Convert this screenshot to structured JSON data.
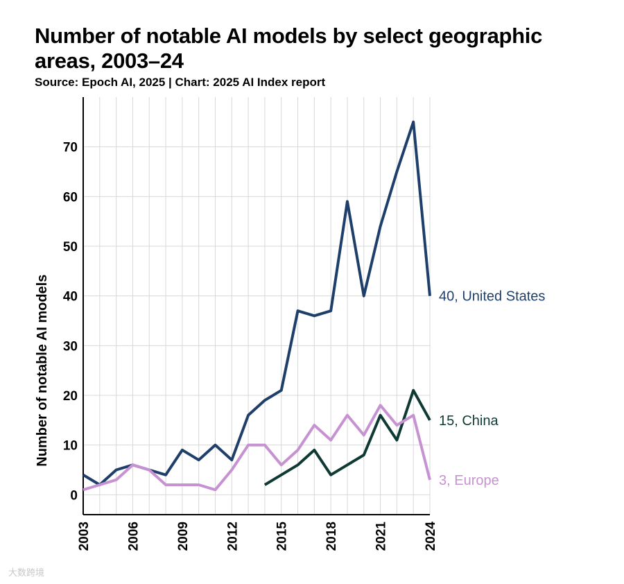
{
  "title": "Number of notable AI models by select geographic areas, 2003–24",
  "subtitle": "Source: Epoch AI, 2025 | Chart: 2025 AI Index report",
  "watermark": "大数跨境",
  "chart_data": {
    "type": "line",
    "title": "Number of notable AI models by select geographic areas, 2003–24",
    "xlabel": "",
    "ylabel": "Number of notable AI models",
    "xlim": [
      2003,
      2024
    ],
    "ylim": [
      -4,
      80
    ],
    "xticks": [
      2003,
      2006,
      2009,
      2012,
      2015,
      2018,
      2021,
      2024
    ],
    "yticks": [
      0,
      10,
      20,
      30,
      40,
      50,
      60,
      70
    ],
    "series": [
      {
        "name": "United States",
        "color": "#1f3f6b",
        "end_label": "40, United States",
        "x": [
          2003,
          2004,
          2005,
          2006,
          2007,
          2008,
          2009,
          2010,
          2011,
          2012,
          2013,
          2014,
          2015,
          2016,
          2017,
          2018,
          2019,
          2020,
          2021,
          2022,
          2023,
          2024
        ],
        "values": [
          4,
          2,
          5,
          6,
          5,
          4,
          9,
          7,
          10,
          7,
          16,
          19,
          21,
          37,
          36,
          37,
          59,
          40,
          54,
          65,
          75,
          40
        ]
      },
      {
        "name": "China",
        "color": "#0f3a33",
        "end_label": "15, China",
        "x": [
          2014,
          2015,
          2016,
          2017,
          2018,
          2019,
          2020,
          2021,
          2022,
          2023,
          2024
        ],
        "values": [
          2,
          4,
          6,
          9,
          4,
          6,
          8,
          16,
          11,
          21,
          15
        ]
      },
      {
        "name": "Europe",
        "color": "#c792d1",
        "end_label": "3, Europe",
        "x": [
          2003,
          2004,
          2005,
          2006,
          2007,
          2008,
          2009,
          2010,
          2011,
          2012,
          2013,
          2014,
          2015,
          2016,
          2017,
          2018,
          2019,
          2020,
          2021,
          2022,
          2023,
          2024
        ],
        "values": [
          1,
          2,
          3,
          6,
          5,
          2,
          2,
          2,
          1,
          5,
          10,
          10,
          6,
          9,
          14,
          11,
          16,
          12,
          18,
          14,
          16,
          3
        ]
      }
    ]
  }
}
